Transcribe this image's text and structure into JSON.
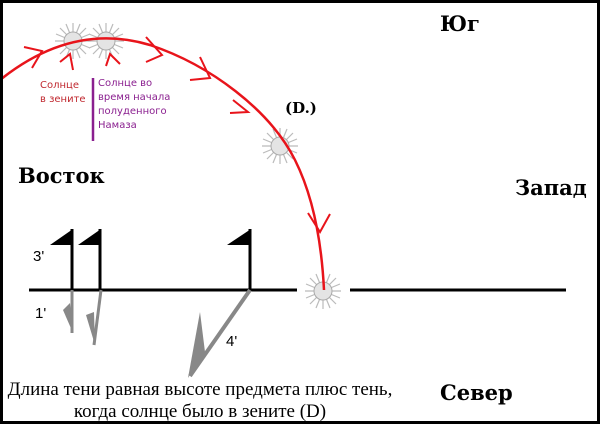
{
  "directions": {
    "south": "Юг",
    "east": "Восток",
    "west": "Запад",
    "north": "Север"
  },
  "sun_label": "(D.)",
  "note_zenith": "Солнце\nв зените",
  "note_namaz": "Солнце во\nвремя начала\nполуденного\nНамаза",
  "shadow_labels": {
    "three": "3'",
    "one": "1'",
    "four": "4'"
  },
  "caption": "Длина тени равная высоте предмета плюс тень,\nкогда солнце было в зените (D)",
  "colors": {
    "path": "#e8141b",
    "zenith_note": "#c0282f",
    "namaz_note": "#8a1f8f",
    "shadow": "#888888"
  }
}
